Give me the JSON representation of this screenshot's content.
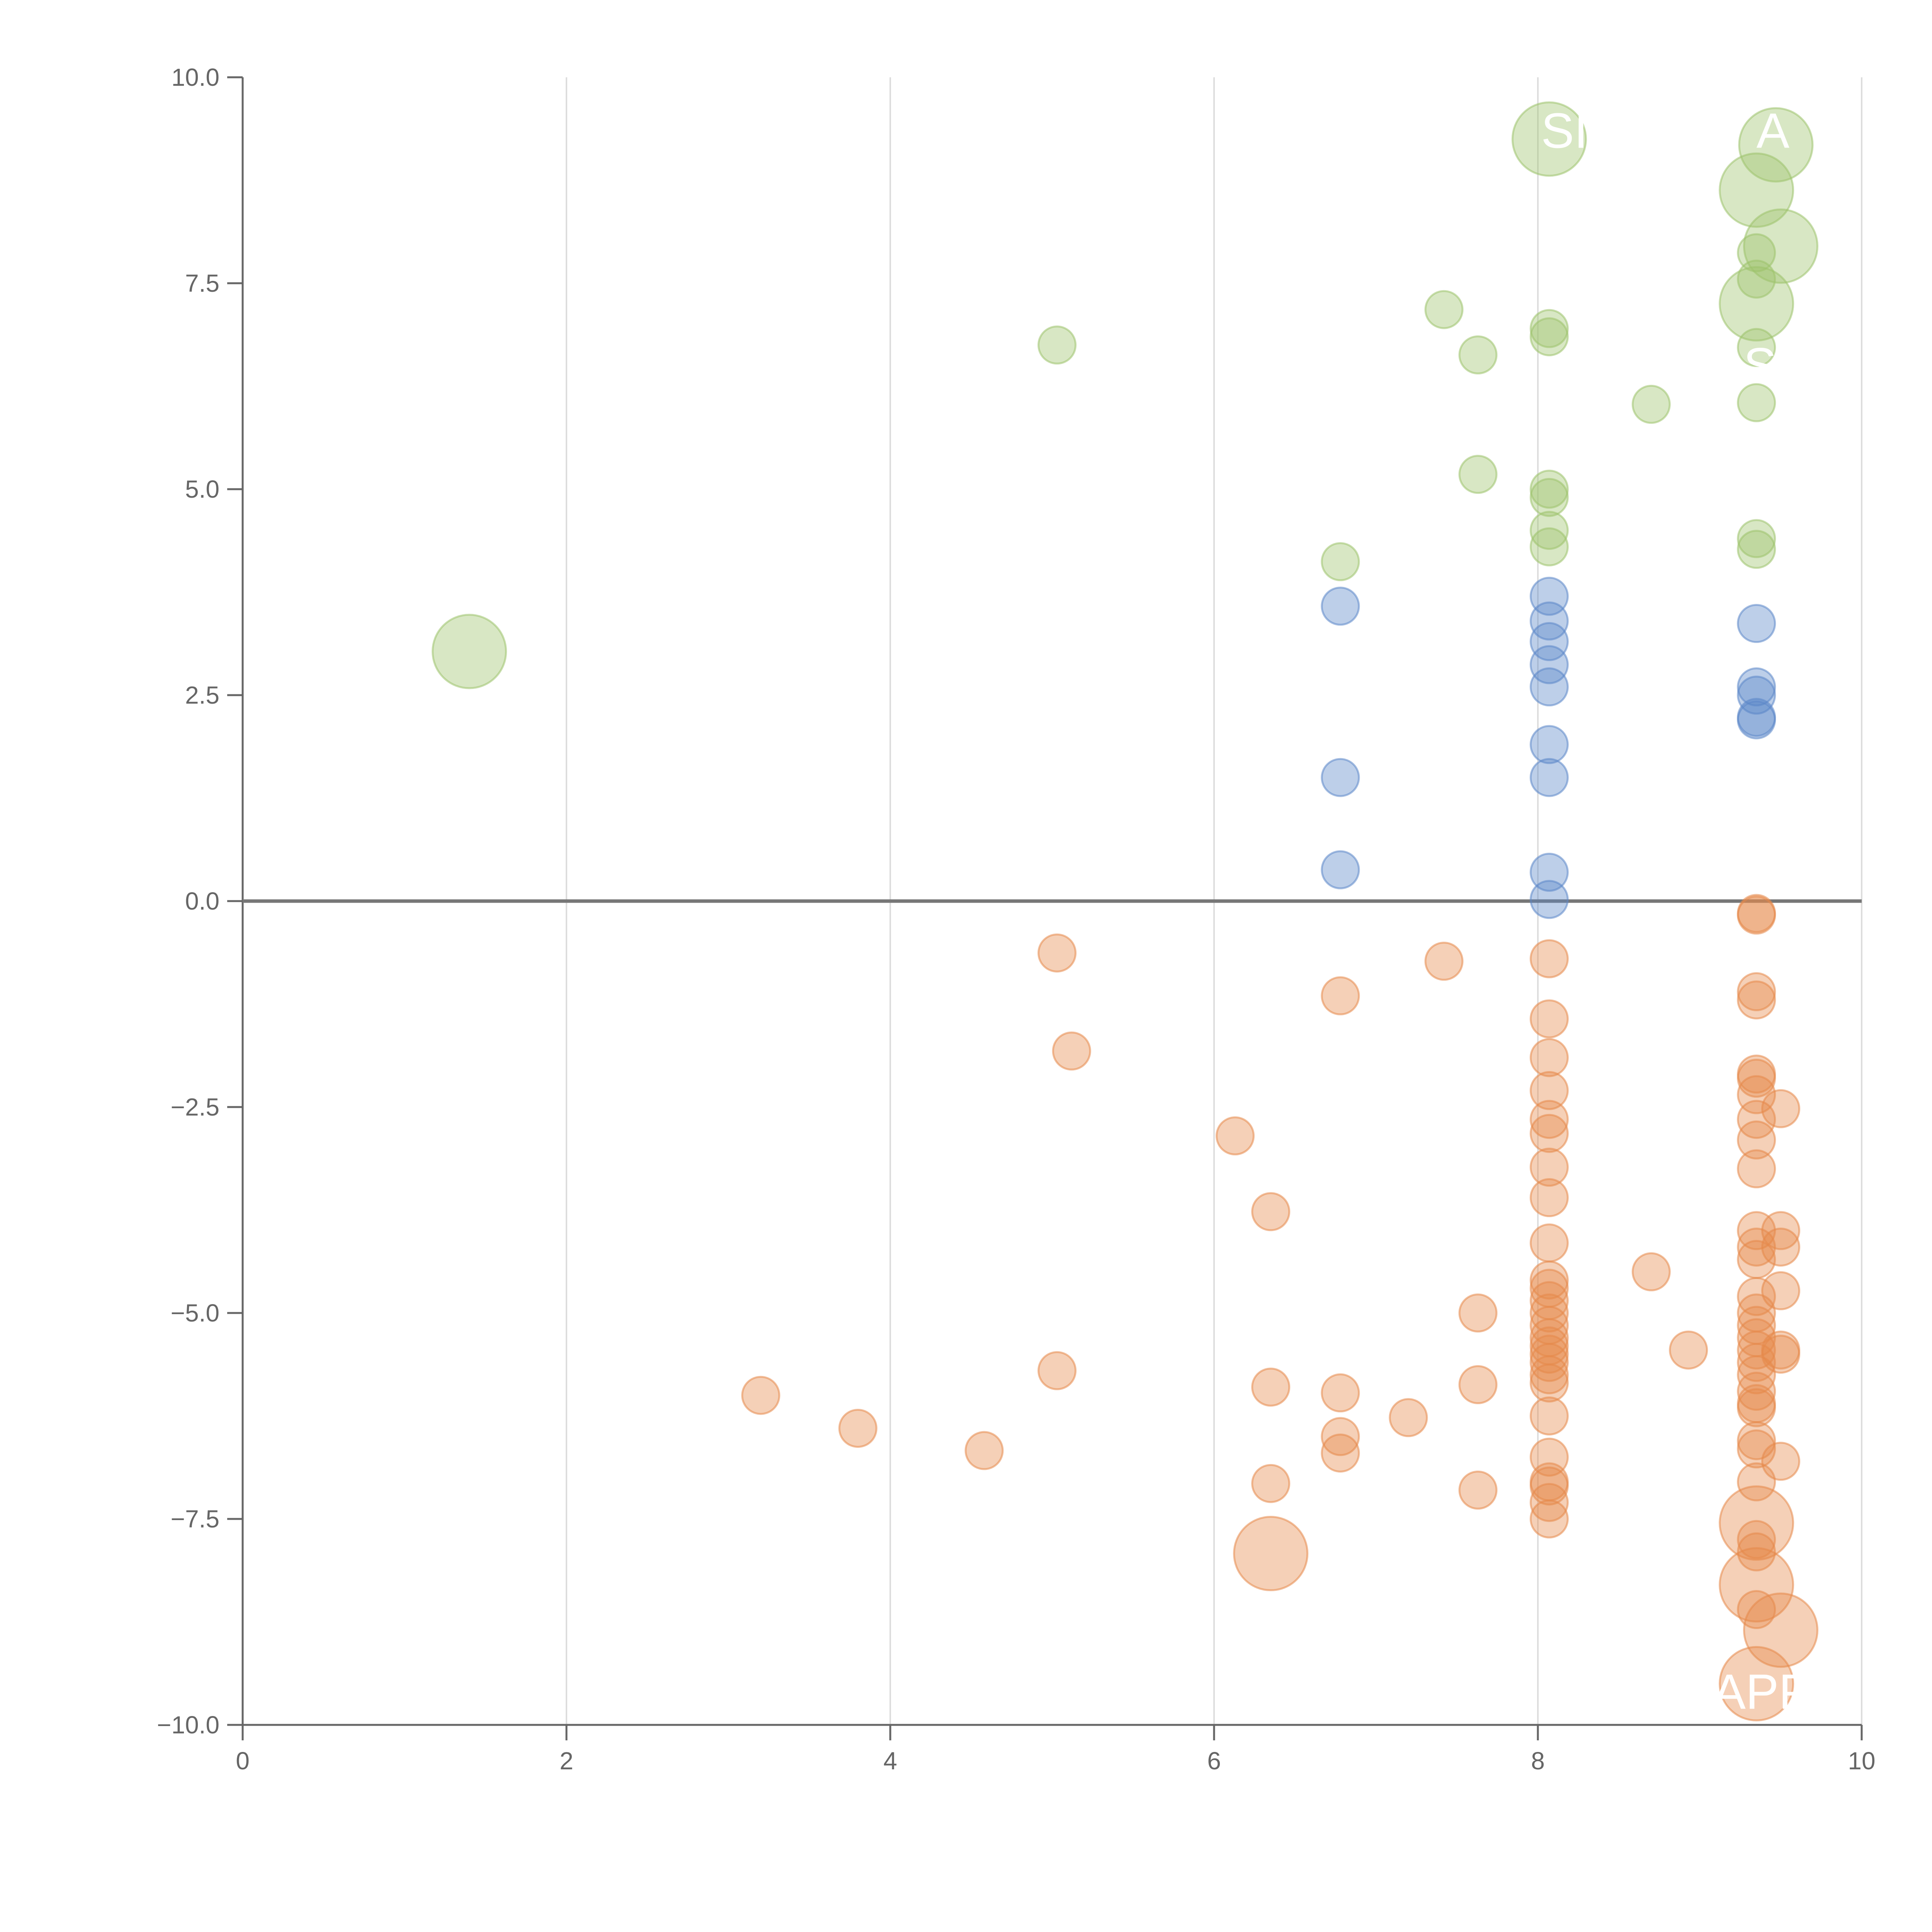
{
  "chart_data": {
    "type": "scatter",
    "title": "",
    "xlabel": "",
    "ylabel": "",
    "xlim": [
      0,
      10
    ],
    "ylim": [
      -10,
      10
    ],
    "x_ticks": [
      0,
      2,
      4,
      6,
      8,
      10
    ],
    "x_tick_labels": [
      "0",
      "2",
      "4",
      "6",
      "8",
      "10"
    ],
    "y_ticks": [
      -10,
      -7.5,
      -5,
      -2.5,
      0,
      2.5,
      5,
      7.5,
      10
    ],
    "y_tick_labels": [
      "−10.0",
      "−7.5",
      "−5.0",
      "−2.5",
      "0.0",
      "2.5",
      "5.0",
      "7.5",
      "10.0"
    ],
    "grid": {
      "vertical": true,
      "horizontal": false
    },
    "zero_line": true,
    "colors": {
      "green": "#9dc36b",
      "blue": "#5b87c9",
      "orange": "#e6894a",
      "axis": "#666666",
      "grid": "#dddddd",
      "zero": "#777777"
    },
    "series": [
      {
        "color": "green",
        "points": [
          [
            8.07,
            9.25,
            "l"
          ],
          [
            9.47,
            9.18,
            "l"
          ],
          [
            9.35,
            8.63,
            "l"
          ],
          [
            9.5,
            7.95,
            "l"
          ],
          [
            9.35,
            7.87,
            "s"
          ],
          [
            9.35,
            7.55,
            "s"
          ],
          [
            9.35,
            7.25,
            "l"
          ],
          [
            7.42,
            7.18,
            "s"
          ],
          [
            8.07,
            6.95,
            "s"
          ],
          [
            8.07,
            6.85,
            "s"
          ],
          [
            5.03,
            6.75,
            "s"
          ],
          [
            9.35,
            6.72,
            "s"
          ],
          [
            7.63,
            6.63,
            "s"
          ],
          [
            8.7,
            6.03,
            "s"
          ],
          [
            9.35,
            6.05,
            "s"
          ],
          [
            7.63,
            5.18,
            "s"
          ],
          [
            8.07,
            5.0,
            "s"
          ],
          [
            8.07,
            4.9,
            "s"
          ],
          [
            8.07,
            4.5,
            "s"
          ],
          [
            9.35,
            4.4,
            "s"
          ],
          [
            9.35,
            4.27,
            "s"
          ],
          [
            8.07,
            4.3,
            "s"
          ],
          [
            6.78,
            4.12,
            "s"
          ],
          [
            1.4,
            3.03,
            "l"
          ]
        ]
      },
      {
        "color": "blue",
        "points": [
          [
            8.07,
            3.7,
            "s"
          ],
          [
            6.78,
            3.58,
            "s"
          ],
          [
            8.07,
            3.4,
            "s"
          ],
          [
            9.35,
            3.37,
            "s"
          ],
          [
            8.07,
            3.15,
            "s"
          ],
          [
            8.07,
            2.87,
            "s"
          ],
          [
            8.07,
            2.6,
            "s"
          ],
          [
            9.35,
            2.6,
            "s"
          ],
          [
            9.35,
            2.5,
            "s"
          ],
          [
            9.35,
            2.23,
            "s"
          ],
          [
            9.35,
            2.2,
            "s"
          ],
          [
            8.07,
            1.9,
            "s"
          ],
          [
            6.78,
            1.5,
            "s"
          ],
          [
            8.07,
            1.5,
            "s"
          ],
          [
            6.78,
            0.38,
            "s"
          ],
          [
            8.07,
            0.35,
            "s"
          ],
          [
            8.07,
            0.02,
            "s"
          ]
        ]
      },
      {
        "color": "orange",
        "points": [
          [
            9.35,
            -0.15,
            "s"
          ],
          [
            9.35,
            -0.17,
            "s"
          ],
          [
            5.03,
            -0.63,
            "s"
          ],
          [
            7.42,
            -0.73,
            "s"
          ],
          [
            8.07,
            -0.7,
            "s"
          ],
          [
            6.78,
            -1.15,
            "s"
          ],
          [
            9.35,
            -1.1,
            "s"
          ],
          [
            9.35,
            -1.2,
            "s"
          ],
          [
            8.07,
            -1.43,
            "s"
          ],
          [
            5.12,
            -1.82,
            "s"
          ],
          [
            8.07,
            -1.9,
            "s"
          ],
          [
            9.35,
            -2.1,
            "s"
          ],
          [
            9.35,
            -2.15,
            "s"
          ],
          [
            8.07,
            -2.3,
            "s"
          ],
          [
            9.35,
            -2.35,
            "s"
          ],
          [
            9.5,
            -2.52,
            "s"
          ],
          [
            8.07,
            -2.65,
            "s"
          ],
          [
            9.35,
            -2.65,
            "s"
          ],
          [
            8.07,
            -2.82,
            "s"
          ],
          [
            6.13,
            -2.85,
            "s"
          ],
          [
            9.35,
            -2.9,
            "s"
          ],
          [
            8.07,
            -3.23,
            "s"
          ],
          [
            9.35,
            -3.25,
            "s"
          ],
          [
            8.07,
            -3.6,
            "s"
          ],
          [
            6.35,
            -3.77,
            "s"
          ],
          [
            9.5,
            -4.0,
            "s"
          ],
          [
            9.35,
            -4.0,
            "s"
          ],
          [
            8.07,
            -4.15,
            "s"
          ],
          [
            9.5,
            -4.2,
            "s"
          ],
          [
            9.35,
            -4.2,
            "s"
          ],
          [
            9.35,
            -4.35,
            "s"
          ],
          [
            8.7,
            -4.5,
            "s"
          ],
          [
            8.07,
            -4.6,
            "s"
          ],
          [
            8.07,
            -4.7,
            "s"
          ],
          [
            9.5,
            -4.73,
            "s"
          ],
          [
            8.07,
            -4.85,
            "s"
          ],
          [
            9.35,
            -4.8,
            "s"
          ],
          [
            7.63,
            -5.0,
            "s"
          ],
          [
            8.07,
            -5.0,
            "s"
          ],
          [
            9.35,
            -5.0,
            "s"
          ],
          [
            8.07,
            -5.15,
            "s"
          ],
          [
            9.35,
            -5.15,
            "s"
          ],
          [
            8.07,
            -5.3,
            "s"
          ],
          [
            9.35,
            -5.3,
            "s"
          ],
          [
            8.07,
            -5.4,
            "s"
          ],
          [
            8.93,
            -5.45,
            "s"
          ],
          [
            9.5,
            -5.45,
            "s"
          ],
          [
            9.35,
            -5.45,
            "s"
          ],
          [
            9.5,
            -5.5,
            "s"
          ],
          [
            8.07,
            -5.5,
            "s"
          ],
          [
            9.35,
            -5.6,
            "s"
          ],
          [
            8.07,
            -5.6,
            "s"
          ],
          [
            5.03,
            -5.7,
            "s"
          ],
          [
            8.07,
            -5.75,
            "s"
          ],
          [
            9.35,
            -5.75,
            "s"
          ],
          [
            8.07,
            -5.85,
            "s"
          ],
          [
            7.63,
            -5.87,
            "s"
          ],
          [
            6.35,
            -5.9,
            "s"
          ],
          [
            9.35,
            -5.95,
            "s"
          ],
          [
            6.78,
            -5.97,
            "s"
          ],
          [
            3.2,
            -6.0,
            "s"
          ],
          [
            9.35,
            -6.1,
            "s"
          ],
          [
            9.35,
            -6.15,
            "s"
          ],
          [
            8.07,
            -6.25,
            "s"
          ],
          [
            7.2,
            -6.27,
            "s"
          ],
          [
            3.8,
            -6.4,
            "s"
          ],
          [
            6.78,
            -6.5,
            "s"
          ],
          [
            9.35,
            -6.55,
            "s"
          ],
          [
            4.58,
            -6.67,
            "s"
          ],
          [
            9.35,
            -6.65,
            "s"
          ],
          [
            6.78,
            -6.7,
            "s"
          ],
          [
            8.07,
            -6.75,
            "s"
          ],
          [
            9.5,
            -6.8,
            "s"
          ],
          [
            9.35,
            -7.05,
            "s"
          ],
          [
            6.35,
            -7.07,
            "s"
          ],
          [
            8.07,
            -7.05,
            "s"
          ],
          [
            8.07,
            -7.1,
            "s"
          ],
          [
            7.63,
            -7.15,
            "s"
          ],
          [
            8.07,
            -7.3,
            "s"
          ],
          [
            8.07,
            -7.5,
            "s"
          ],
          [
            9.35,
            -7.55,
            "l"
          ],
          [
            9.35,
            -7.75,
            "s"
          ],
          [
            6.35,
            -7.92,
            "l"
          ],
          [
            9.35,
            -7.9,
            "s"
          ],
          [
            9.35,
            -8.3,
            "l"
          ],
          [
            9.35,
            -8.6,
            "s"
          ],
          [
            9.5,
            -8.85,
            "l"
          ],
          [
            9.35,
            -9.5,
            "l"
          ]
        ]
      }
    ],
    "labels": [
      {
        "text": "SI",
        "x": 8.02,
        "y": 9.35,
        "anchor": "start"
      },
      {
        "text": "A",
        "x": 9.35,
        "y": 9.35,
        "anchor": "start"
      },
      {
        "text": "S",
        "x": 9.27,
        "y": 6.5,
        "anchor": "start"
      },
      {
        "text": "APP",
        "x": 9.08,
        "y": -9.6,
        "anchor": "start"
      }
    ]
  }
}
